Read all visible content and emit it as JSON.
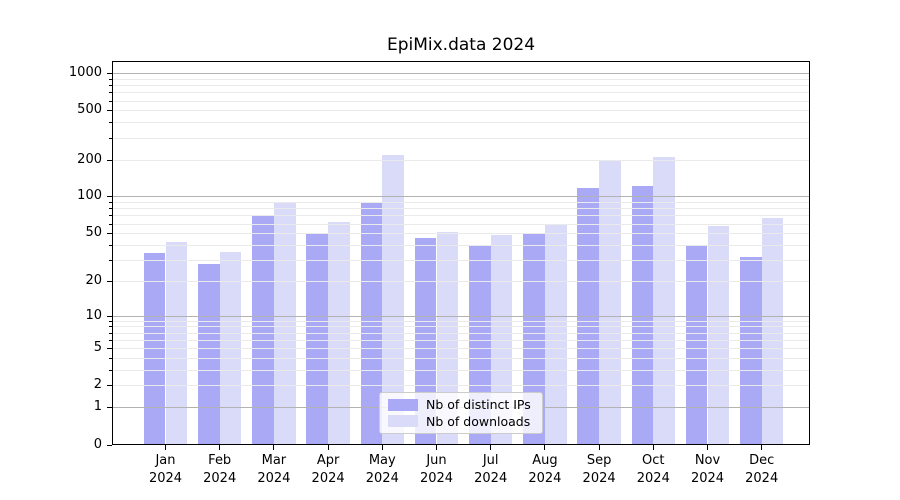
{
  "title": "EpiMix.data 2024",
  "colors": {
    "distinct_ips": "#a9a9f6",
    "downloads": "#dadaf9",
    "grid_major": "#b2b2b2",
    "grid_minor": "#eaeaea",
    "axis": "#000000",
    "legend_border": "#cccccc"
  },
  "legend": {
    "items": [
      {
        "label": "Nb of distinct IPs",
        "series_key": "distinct_ips"
      },
      {
        "label": "Nb of downloads",
        "series_key": "downloads"
      }
    ]
  },
  "y_axis": {
    "tick_labels": [
      "0",
      "1",
      "2",
      "5",
      "10",
      "20",
      "50",
      "100",
      "200",
      "500",
      "1000"
    ],
    "tick_values": [
      0,
      1,
      2,
      5,
      10,
      20,
      50,
      100,
      200,
      500,
      1000
    ],
    "minor_tick_values": [
      3,
      4,
      6,
      7,
      8,
      9,
      30,
      40,
      60,
      70,
      80,
      90,
      300,
      400,
      600,
      700,
      800,
      900
    ]
  },
  "x_axis": {
    "labels": [
      {
        "month": "Jan",
        "year": "2024"
      },
      {
        "month": "Feb",
        "year": "2024"
      },
      {
        "month": "Mar",
        "year": "2024"
      },
      {
        "month": "Apr",
        "year": "2024"
      },
      {
        "month": "May",
        "year": "2024"
      },
      {
        "month": "Jun",
        "year": "2024"
      },
      {
        "month": "Jul",
        "year": "2024"
      },
      {
        "month": "Aug",
        "year": "2024"
      },
      {
        "month": "Sep",
        "year": "2024"
      },
      {
        "month": "Oct",
        "year": "2024"
      },
      {
        "month": "Nov",
        "year": "2024"
      },
      {
        "month": "Dec",
        "year": "2024"
      }
    ]
  },
  "chart_data": {
    "type": "bar",
    "title": "EpiMix.data 2024",
    "scale": "log1p",
    "ylim": [
      0,
      1256
    ],
    "grid": true,
    "legend_position": "lower center",
    "categories": [
      "Jan 2024",
      "Feb 2024",
      "Mar 2024",
      "Apr 2024",
      "May 2024",
      "Jun 2024",
      "Jul 2024",
      "Aug 2024",
      "Sep 2024",
      "Oct 2024",
      "Nov 2024",
      "Dec 2024"
    ],
    "series": [
      {
        "name": "Nb of distinct IPs",
        "color": "#a9a9f6",
        "values": [
          34,
          28,
          70,
          50,
          90,
          46,
          39,
          49,
          117,
          122,
          40,
          32
        ]
      },
      {
        "name": "Nb of downloads",
        "color": "#dadaf9",
        "values": [
          42,
          35,
          90,
          62,
          218,
          51,
          48,
          58,
          195,
          211,
          57,
          67
        ]
      }
    ]
  }
}
